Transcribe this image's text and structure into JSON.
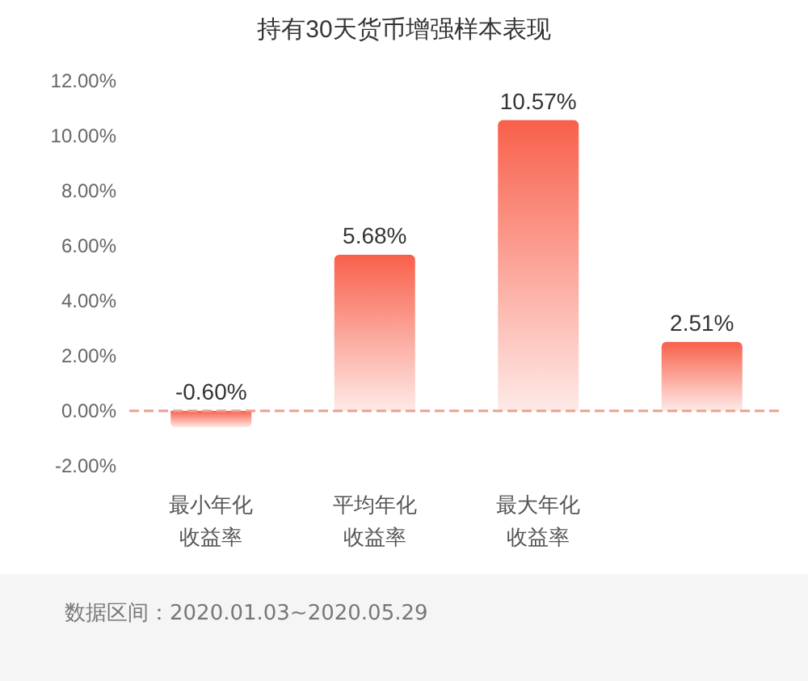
{
  "chart_data": {
    "type": "bar",
    "title": "持有30天货币增强样本表现",
    "categories": [
      "最小年化收益率",
      "平均年化收益率",
      "最大年化收益率",
      null
    ],
    "values": [
      -0.6,
      5.68,
      10.57,
      2.51
    ],
    "value_labels": [
      "-0.60%",
      "5.68%",
      "10.57%",
      "2.51%"
    ],
    "color": "#f8604b",
    "ylim": [
      -2,
      12
    ],
    "yticks": [
      {
        "value": -2,
        "label": "-2.00%"
      },
      {
        "value": 0,
        "label": "0.00%"
      },
      {
        "value": 2,
        "label": "2.00%"
      },
      {
        "value": 4,
        "label": "4.00%"
      },
      {
        "value": 6,
        "label": "6.00%"
      },
      {
        "value": 8,
        "label": "8.00%"
      },
      {
        "value": 10,
        "label": "10.00%"
      },
      {
        "value": 12,
        "label": "12.00%"
      }
    ],
    "grid": false,
    "ref_lines": [
      {
        "axis": "y",
        "value": 0,
        "color": "#e8a090",
        "line_style": "dashed"
      }
    ],
    "annotations": [
      "数据区间：2020.01.03~2020.05.29"
    ]
  }
}
